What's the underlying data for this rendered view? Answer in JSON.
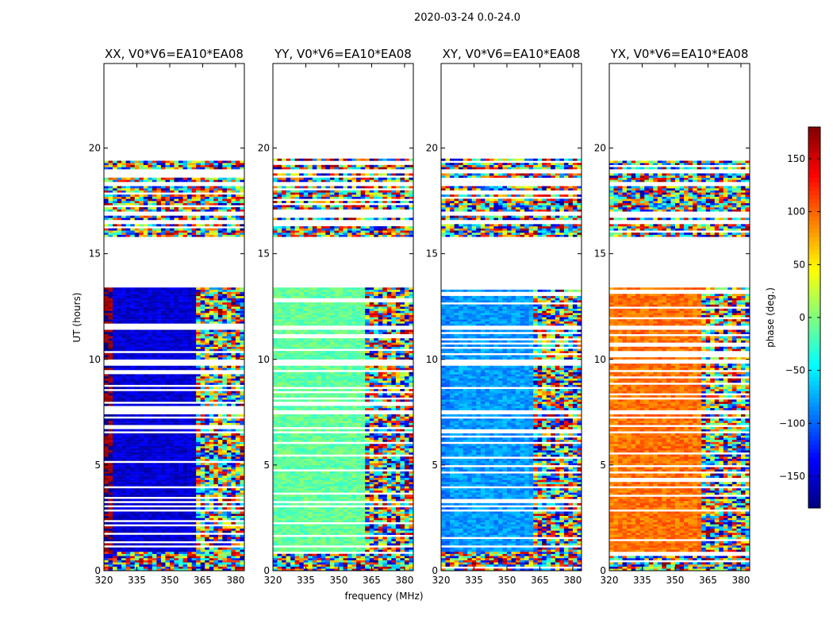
{
  "chart_data": {
    "type": "heatmap",
    "suptitle": "2020-03-24 0.0-24.0",
    "xlabel": "frequency (MHz)",
    "ylabel": "UT (hours)",
    "xlim": [
      320,
      384
    ],
    "ylim": [
      0,
      24
    ],
    "xticks": [
      "320",
      "335",
      "350",
      "365",
      "380"
    ],
    "yticks": [
      "0",
      "5",
      "10",
      "15",
      "20"
    ],
    "colorbar": {
      "label": "phase (deg.)",
      "range": [
        -180,
        180
      ],
      "ticks": [
        "150",
        "100",
        "50",
        "0",
        "−50",
        "−100",
        "−150"
      ],
      "colormap": [
        "#00007f",
        "#0000ff",
        "#007fff",
        "#00ffff",
        "#7fff7f",
        "#ffff00",
        "#ff7f00",
        "#ff0000",
        "#7f0000"
      ]
    },
    "panels": [
      {
        "title": "XX, V0*V6=EA10*EA08",
        "phase_low_freq": -150,
        "phase_low_freq_edge": 175,
        "phase_high_freq": -110
      },
      {
        "title": "YY, V0*V6=EA10*EA08",
        "phase_low_freq": -10,
        "phase_low_freq_edge": -10,
        "phase_high_freq": 0
      },
      {
        "title": "XY, V0*V6=EA10*EA08",
        "phase_low_freq": -80,
        "phase_low_freq_edge": -90,
        "phase_high_freq": -60
      },
      {
        "title": "YX, V0*V6=EA10*EA08",
        "phase_low_freq": 95,
        "phase_low_freq_edge": 90,
        "phase_high_freq": 110
      }
    ],
    "data_bands_hours": [
      [
        0.0,
        7.4
      ],
      [
        7.6,
        9.8
      ],
      [
        10.0,
        11.4
      ],
      [
        11.6,
        13.4
      ],
      [
        15.8,
        16.4
      ],
      [
        16.6,
        16.8
      ],
      [
        17.0,
        18.2
      ],
      [
        18.4,
        18.8
      ],
      [
        19.0,
        19.5
      ]
    ]
  }
}
